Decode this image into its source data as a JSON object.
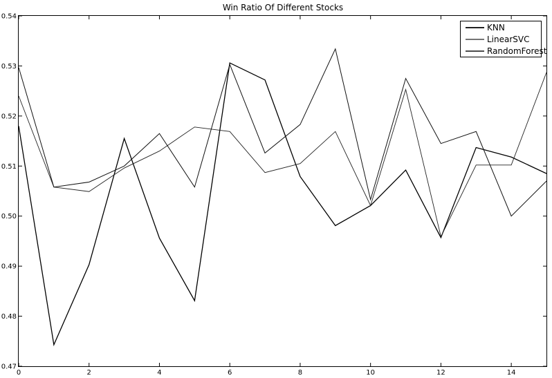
{
  "chart_data": {
    "type": "line",
    "title": "Win Ratio Of Different Stocks",
    "xlabel": "",
    "ylabel": "",
    "x": [
      0,
      1,
      2,
      3,
      4,
      5,
      6,
      7,
      8,
      9,
      10,
      11,
      12,
      13,
      14,
      15
    ],
    "xlim": [
      0,
      15
    ],
    "ylim": [
      0.47,
      0.54
    ],
    "xticks": [
      0,
      2,
      4,
      6,
      8,
      10,
      12,
      14
    ],
    "yticks": [
      0.47,
      0.48,
      0.49,
      0.5,
      0.51,
      0.52,
      0.53,
      0.54
    ],
    "grid": false,
    "legend_position": "top-right",
    "series": [
      {
        "name": "KNN",
        "color": "#000000",
        "width": 1.3,
        "values": [
          0.518,
          0.4743,
          0.4903,
          0.5155,
          0.4956,
          0.4831,
          0.5306,
          0.5272,
          0.5079,
          0.4981,
          0.5021,
          0.5092,
          0.4957,
          0.5137,
          0.5118,
          0.5085
        ]
      },
      {
        "name": "LinearSVC",
        "color": "#222222",
        "width": 0.9,
        "values": [
          0.524,
          0.5058,
          0.5049,
          0.5096,
          0.513,
          0.5178,
          0.5169,
          0.5087,
          0.5105,
          0.5169,
          0.5021,
          0.5253,
          0.4959,
          0.5102,
          0.5102,
          0.5287
        ]
      },
      {
        "name": "RandomForest",
        "color": "#111111",
        "width": 1.0,
        "values": [
          0.5297,
          0.5058,
          0.5068,
          0.51,
          0.5165,
          0.5058,
          0.5303,
          0.5126,
          0.5183,
          0.5334,
          0.5033,
          0.5275,
          0.5145,
          0.5169,
          0.5,
          0.507
        ]
      }
    ]
  }
}
